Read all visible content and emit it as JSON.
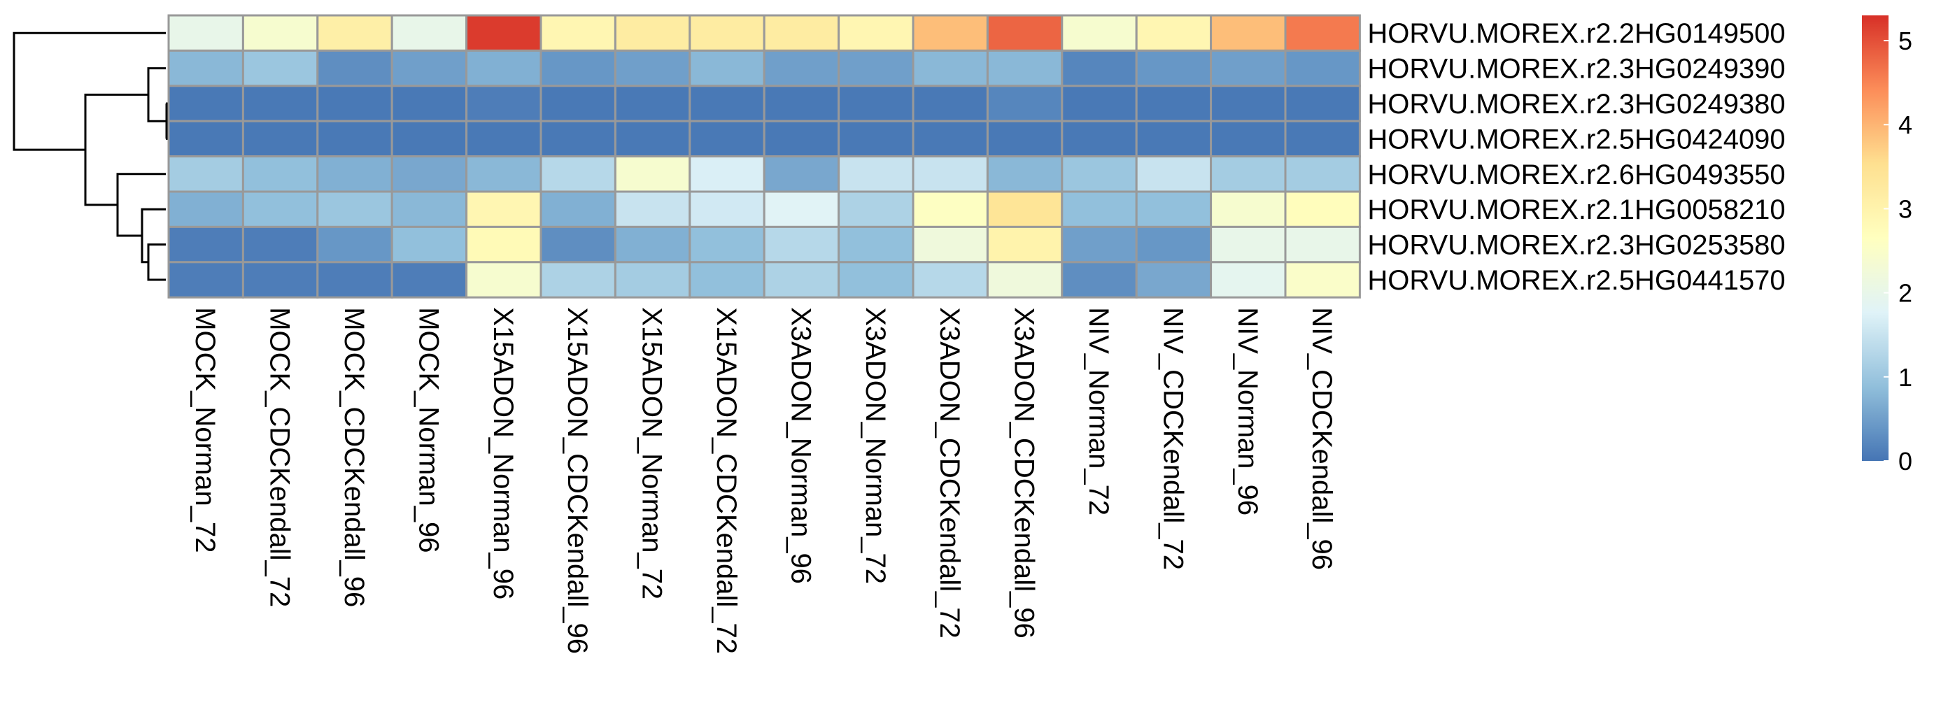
{
  "chart_data": {
    "type": "heatmap",
    "title": "",
    "xlabel": "",
    "ylabel": "",
    "columns": [
      "MOCK_Norman_72",
      "MOCK_CDCKendall_72",
      "MOCK_CDCKendall_96",
      "MOCK_Norman_96",
      "X15ADON_Norman_96",
      "X15ADON_CDCKendall_96",
      "X15ADON_Norman_72",
      "X15ADON_CDCKendall_72",
      "X3ADON_Norman_96",
      "X3ADON_Norman_72",
      "X3ADON_CDCKendall_72",
      "X3ADON_CDCKendall_96",
      "NIV_Norman_72",
      "NIV_CDCKendall_72",
      "NIV_Norman_96",
      "NIV_CDCKendall_96"
    ],
    "rows": [
      "HORVU.MOREX.r2.2HG0149500",
      "HORVU.MOREX.r2.3HG0249390",
      "HORVU.MOREX.r2.3HG0249380",
      "HORVU.MOREX.r2.5HG0424090",
      "HORVU.MOREX.r2.6HG0493550",
      "HORVU.MOREX.r2.1HG0058210",
      "HORVU.MOREX.r2.3HG0253580",
      "HORVU.MOREX.r2.5HG0441570"
    ],
    "values": [
      [
        2.0,
        2.4,
        3.1,
        2.0,
        5.2,
        2.9,
        3.2,
        3.2,
        3.2,
        2.9,
        3.9,
        4.8,
        2.4,
        2.9,
        3.9,
        4.6
      ],
      [
        0.8,
        1.0,
        0.3,
        0.5,
        0.7,
        0.4,
        0.5,
        0.8,
        0.5,
        0.5,
        0.8,
        0.8,
        0.2,
        0.4,
        0.5,
        0.4
      ],
      [
        0.05,
        0.05,
        0.05,
        0.05,
        0.1,
        0.05,
        0.05,
        0.05,
        0.05,
        0.05,
        0.05,
        0.2,
        0.05,
        0.05,
        0.05,
        0.05
      ],
      [
        0.05,
        0.05,
        0.05,
        0.05,
        0.05,
        0.05,
        0.05,
        0.05,
        0.05,
        0.05,
        0.05,
        0.05,
        0.05,
        0.05,
        0.05,
        0.05
      ],
      [
        1.1,
        0.9,
        0.7,
        0.6,
        0.8,
        1.3,
        2.4,
        1.7,
        0.6,
        1.5,
        1.5,
        0.8,
        1.0,
        1.5,
        1.1,
        1.1
      ],
      [
        0.7,
        0.9,
        1.0,
        0.8,
        2.9,
        0.7,
        1.5,
        1.6,
        1.8,
        1.2,
        2.6,
        3.4,
        0.9,
        0.9,
        2.4,
        2.7
      ],
      [
        0.1,
        0.1,
        0.4,
        0.9,
        2.8,
        0.3,
        0.7,
        0.9,
        1.3,
        0.9,
        2.2,
        3.0,
        0.5,
        0.4,
        2.0,
        2.0
      ],
      [
        0.1,
        0.1,
        0.1,
        0.1,
        2.4,
        1.2,
        1.1,
        0.9,
        1.2,
        0.9,
        1.3,
        2.2,
        0.3,
        0.6,
        1.9,
        2.5
      ]
    ],
    "color_scale": {
      "min": 0,
      "max": 5.3,
      "stops": [
        "#4575b4",
        "#91bfdb",
        "#e0f3f8",
        "#ffffbf",
        "#fee090",
        "#fc8d59",
        "#d73027"
      ],
      "ticks": [
        0,
        1,
        2,
        3,
        4,
        5
      ]
    },
    "cell_border_color": "#999999",
    "row_dendrogram": true
  }
}
